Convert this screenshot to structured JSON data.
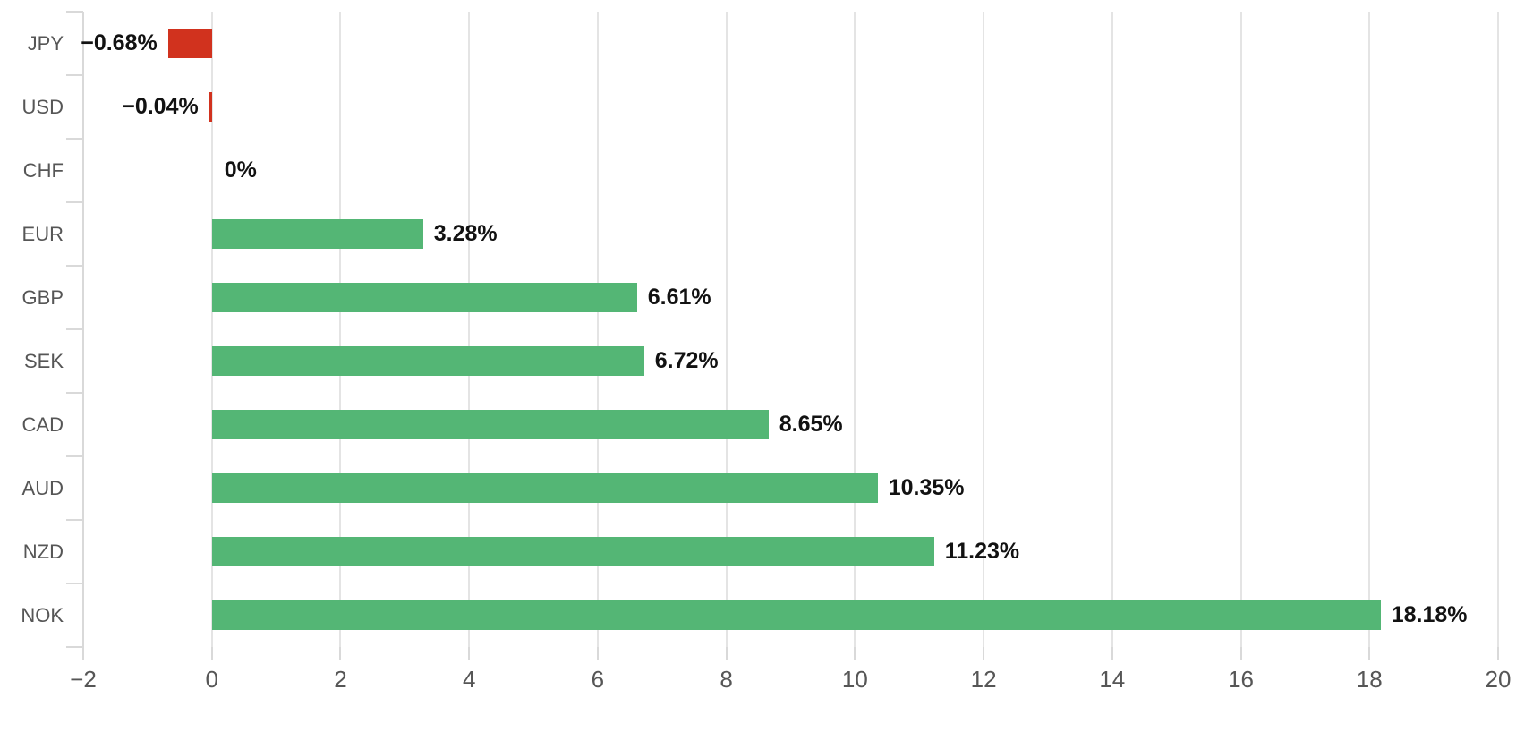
{
  "chart_data": {
    "type": "bar",
    "orientation": "horizontal",
    "categories": [
      "JPY",
      "USD",
      "CHF",
      "EUR",
      "GBP",
      "SEK",
      "CAD",
      "AUD",
      "NZD",
      "NOK"
    ],
    "values": [
      -0.68,
      -0.04,
      0,
      3.28,
      6.61,
      6.72,
      8.65,
      10.35,
      11.23,
      18.18
    ],
    "value_labels": [
      "−0.68%",
      "−0.04%",
      "0%",
      "3.28%",
      "6.61%",
      "6.72%",
      "8.65%",
      "10.35%",
      "11.23%",
      "18.18%"
    ],
    "title": "",
    "xlabel": "",
    "ylabel": "",
    "xlim": [
      -2,
      20
    ],
    "x_ticks": [
      -2,
      0,
      2,
      4,
      6,
      8,
      10,
      12,
      14,
      16,
      18,
      20
    ],
    "x_tick_labels": [
      "−2",
      "0",
      "2",
      "4",
      "6",
      "8",
      "10",
      "12",
      "14",
      "16",
      "18",
      "20"
    ],
    "grid": "vertical",
    "legend": "none",
    "colors": {
      "positive_bar": "#54b675",
      "negative_bar": "#d1321e",
      "gridline": "#e4e4e4",
      "axis_tick": "#d9d9d9",
      "category_label": "#565656",
      "tick_label": "#565656",
      "value_label": "#121212",
      "background": "#ffffff"
    }
  }
}
